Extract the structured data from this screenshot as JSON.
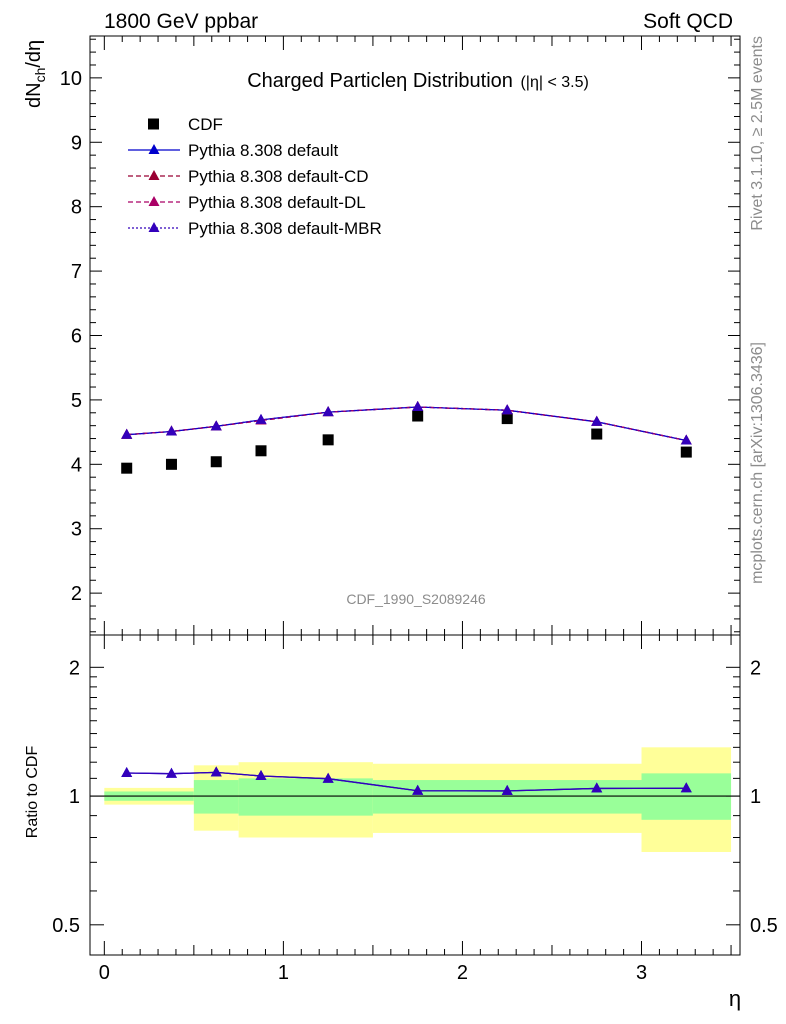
{
  "header": {
    "left": "1800 GeV ppbar",
    "right": "Soft QCD"
  },
  "side_labels": {
    "rivet": "Rivet 3.1.10, ≥ 2.5M events",
    "mcplots": "mcplots.cern.ch [arXiv:1306.3436]"
  },
  "watermark": "CDF_1990_S2089246",
  "colors": {
    "cdf": "#000000",
    "default": "#0000cc",
    "default_cd": "#990033",
    "default_dl": "#aa0066",
    "default_mbr": "#3300bb",
    "band_inner": "#99ff99",
    "band_outer": "#ffff99"
  },
  "chart_data": [
    {
      "type": "scatter",
      "title": "Charged Particleη Distribution",
      "title_suffix": "(|η| < 3.5)",
      "ylabel": "dN_ch/dη",
      "xlim": [
        -0.08,
        3.55
      ],
      "ylim": [
        1.35,
        10.65
      ],
      "yticks": [
        2,
        3,
        4,
        5,
        6,
        7,
        8,
        9,
        10
      ],
      "legend_position": "top-left",
      "legend": [
        "CDF",
        "Pythia 8.308 default",
        "Pythia 8.308 default-CD",
        "Pythia 8.308 default-DL",
        "Pythia 8.308 default-MBR"
      ],
      "x": [
        0.125,
        0.375,
        0.625,
        0.875,
        1.25,
        1.75,
        2.25,
        2.75,
        3.25
      ],
      "series": [
        {
          "name": "CDF",
          "values": [
            3.94,
            4.0,
            4.04,
            4.21,
            4.38,
            4.75,
            4.71,
            4.47,
            4.19
          ]
        },
        {
          "name": "Pythia 8.308 default",
          "values": [
            4.46,
            4.51,
            4.59,
            4.69,
            4.81,
            4.89,
            4.84,
            4.66,
            4.37
          ]
        },
        {
          "name": "Pythia 8.308 default-CD",
          "values": [
            4.46,
            4.51,
            4.59,
            4.68,
            4.81,
            4.89,
            4.84,
            4.66,
            4.37
          ]
        },
        {
          "name": "Pythia 8.308 default-DL",
          "values": [
            4.46,
            4.51,
            4.59,
            4.68,
            4.81,
            4.89,
            4.84,
            4.66,
            4.37
          ]
        },
        {
          "name": "Pythia 8.308 default-MBR",
          "values": [
            4.46,
            4.51,
            4.59,
            4.69,
            4.81,
            4.89,
            4.84,
            4.66,
            4.37
          ]
        }
      ]
    },
    {
      "type": "line",
      "ylabel": "Ratio to CDF",
      "xlabel": "η",
      "xlim": [
        -0.08,
        3.55
      ],
      "ylim": [
        0.425,
        2.38
      ],
      "log_y": true,
      "yticks": [
        0.5,
        1,
        2
      ],
      "xticks": [
        0,
        1,
        2,
        3
      ],
      "reference_line": 1,
      "bands": [
        {
          "x0": 0.0,
          "x1": 0.5,
          "inner": [
            0.975,
            1.025
          ],
          "outer": [
            0.955,
            1.045
          ]
        },
        {
          "x0": 0.5,
          "x1": 0.75,
          "inner": [
            0.91,
            1.09
          ],
          "outer": [
            0.83,
            1.18
          ]
        },
        {
          "x0": 0.75,
          "x1": 1.5,
          "inner": [
            0.9,
            1.1
          ],
          "outer": [
            0.8,
            1.2
          ]
        },
        {
          "x0": 1.5,
          "x1": 3.0,
          "inner": [
            0.91,
            1.09
          ],
          "outer": [
            0.82,
            1.19
          ]
        },
        {
          "x0": 3.0,
          "x1": 3.5,
          "inner": [
            0.88,
            1.13
          ],
          "outer": [
            0.74,
            1.3
          ]
        }
      ],
      "x": [
        0.125,
        0.375,
        0.625,
        0.875,
        1.25,
        1.75,
        2.25,
        2.75,
        3.25
      ],
      "series": [
        {
          "name": "Pythia 8.308 default",
          "values": [
            1.132,
            1.128,
            1.136,
            1.114,
            1.098,
            1.029,
            1.028,
            1.042,
            1.043
          ]
        },
        {
          "name": "Pythia 8.308 default-MBR",
          "values": [
            1.132,
            1.128,
            1.136,
            1.114,
            1.098,
            1.029,
            1.028,
            1.042,
            1.043
          ]
        }
      ]
    }
  ]
}
